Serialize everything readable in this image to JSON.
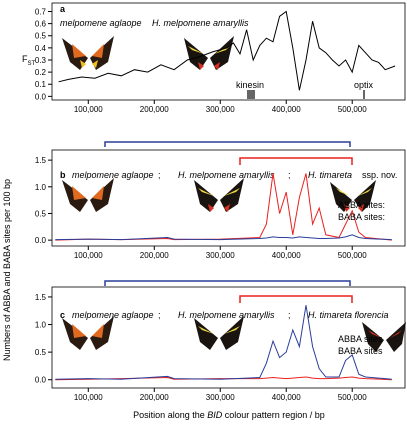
{
  "chart_data": [
    {
      "type": "line",
      "panel": "a",
      "ylabel": "F",
      "ylabel_sub": "ST",
      "labels": [
        "melpomene aglaope",
        "H. melpomene amaryllis"
      ],
      "annotations": [
        "kinesin",
        "optix"
      ],
      "xlim": [
        45000,
        580000
      ],
      "ylim": [
        -0.03,
        0.77
      ],
      "xticks": [
        {
          "value": 100000,
          "label": "100,000"
        },
        {
          "value": 200000,
          "label": "200,000"
        },
        {
          "value": 300000,
          "label": "300,000"
        },
        {
          "value": 400000,
          "label": "400,000"
        },
        {
          "value": 500000,
          "label": "500,000"
        }
      ],
      "yticks": [
        {
          "value": 0,
          "label": "0.0"
        },
        0.1,
        0.2,
        0.3,
        0.4,
        0.5,
        0.6,
        0.7
      ],
      "x": [
        55000,
        70000,
        90000,
        110000,
        130000,
        150000,
        170000,
        190000,
        210000,
        230000,
        250000,
        270000,
        290000,
        310000,
        320000,
        330000,
        340000,
        350000,
        360000,
        370000,
        380000,
        390000,
        400000,
        410000,
        420000,
        430000,
        440000,
        450000,
        460000,
        470000,
        480000,
        490000,
        500000,
        510000,
        520000,
        530000,
        540000,
        550000,
        565000
      ],
      "series": [
        {
          "name": "FST",
          "color": "#000000",
          "values": [
            0.12,
            0.14,
            0.16,
            0.15,
            0.19,
            0.17,
            0.22,
            0.2,
            0.26,
            0.22,
            0.3,
            0.33,
            0.37,
            0.4,
            0.44,
            0.35,
            0.55,
            0.3,
            0.42,
            0.48,
            0.45,
            0.66,
            0.7,
            0.4,
            0.05,
            0.3,
            0.62,
            0.4,
            0.36,
            0.3,
            0.25,
            0.3,
            0.2,
            0.42,
            0.36,
            0.3,
            0.28,
            0.22,
            0.25
          ]
        }
      ]
    },
    {
      "type": "line",
      "panel": "b",
      "ylabel": "Numbers of ABBA and BABA sites per 100 bp",
      "labels": [
        "melpomene aglaope",
        ";",
        "H. melpomene amaryllis",
        ";",
        "H. timareta",
        "ssp. nov."
      ],
      "xlim": [
        45000,
        580000
      ],
      "ylim": [
        -0.11,
        1.69
      ],
      "xticks": [
        {
          "value": 100000,
          "label": "100,000"
        },
        {
          "value": 200000,
          "label": "200,000"
        },
        {
          "value": 300000,
          "label": "300,000"
        },
        {
          "value": 400000,
          "label": "400,000"
        },
        {
          "value": 500000,
          "label": "500,000"
        }
      ],
      "yticks": [
        {
          "value": 0,
          "label": "0.0"
        },
        0.5,
        {
          "value": 1,
          "label": "1.0"
        },
        1.5
      ],
      "x": [
        50000,
        100000,
        150000,
        220000,
        230000,
        300000,
        360000,
        370000,
        380000,
        390000,
        400000,
        410000,
        420000,
        430000,
        440000,
        450000,
        460000,
        480000,
        490000,
        500000,
        510000,
        520000,
        560000
      ],
      "series": [
        {
          "name": "ABBA sites:",
          "color": "#e8221f",
          "values": [
            0,
            0.02,
            0.01,
            0.03,
            0.01,
            0.02,
            0.05,
            0.3,
            1.25,
            0.5,
            0.9,
            0.1,
            0.8,
            1.25,
            0.3,
            0.6,
            0.1,
            0.05,
            0.3,
            0.55,
            0.15,
            0.05,
            0
          ]
        },
        {
          "name": "BABA sites:",
          "color": "#2a3e9a",
          "values": [
            0.01,
            0.02,
            0.01,
            0.05,
            0.02,
            0.01,
            0.03,
            0.04,
            0.06,
            0.05,
            0.05,
            0.04,
            0.06,
            0.05,
            0.04,
            0.03,
            0.03,
            0.04,
            0.06,
            0.1,
            0.05,
            0.03,
            0.01
          ]
        }
      ]
    },
    {
      "type": "line",
      "panel": "c",
      "labels": [
        "melpomene aglaope",
        ";",
        "H. melpomene amaryllis",
        ";",
        "H. timareta florencia"
      ],
      "xlabel": [
        "Position along the ",
        "BID",
        " colour pattern region / bp"
      ],
      "xlim": [
        45000,
        580000
      ],
      "ylim": [
        -0.15,
        1.68
      ],
      "xticks": [
        {
          "value": 100000,
          "label": "100,000"
        },
        {
          "value": 200000,
          "label": "200,000"
        },
        {
          "value": 300000,
          "label": "300,000"
        },
        {
          "value": 400000,
          "label": "400,000"
        },
        {
          "value": 500000,
          "label": "500,000"
        }
      ],
      "yticks": [
        {
          "value": 0,
          "label": "0.0"
        },
        0.5,
        {
          "value": 1,
          "label": "1.0"
        },
        1.5
      ],
      "x": [
        50000,
        100000,
        150000,
        220000,
        230000,
        300000,
        360000,
        370000,
        380000,
        390000,
        400000,
        410000,
        420000,
        430000,
        440000,
        450000,
        460000,
        480000,
        490000,
        500000,
        510000,
        520000,
        560000
      ],
      "series": [
        {
          "name": "ABBA sites",
          "color": "#e8221f",
          "values": [
            0,
            0.01,
            0.02,
            0.04,
            0.01,
            0.02,
            0.02,
            0.03,
            0.04,
            0.03,
            0.02,
            0.03,
            0.04,
            0.05,
            0.03,
            0.02,
            0.02,
            0.03,
            0.04,
            0.05,
            0.03,
            0.02,
            0
          ]
        },
        {
          "name": "BABA sites",
          "color": "#2a3e9a",
          "values": [
            0.01,
            0.02,
            0.01,
            0.06,
            0.02,
            0.01,
            0.04,
            0.3,
            0.7,
            0.4,
            0.5,
            0.9,
            0.6,
            1.35,
            0.6,
            0.2,
            0.05,
            0.05,
            0.35,
            0.45,
            0.1,
            0.05,
            0.01
          ]
        }
      ]
    }
  ]
}
